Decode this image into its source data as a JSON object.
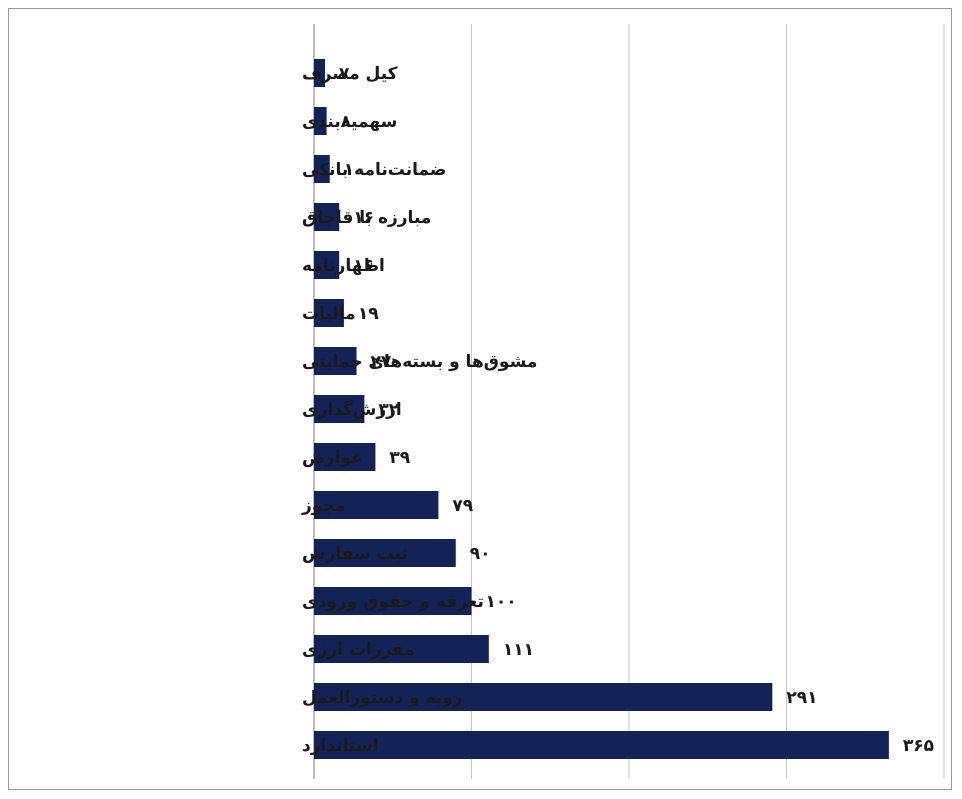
{
  "chart_data": {
    "type": "bar",
    "orientation": "horizontal",
    "title": "",
    "xlabel": "",
    "ylabel": "",
    "xlim": [
      0,
      400
    ],
    "grid": true,
    "bar_color": "#132357",
    "categories": [
      "کیل مصرف",
      "سهمیه‌بندی",
      "ضمانت‌نامه بانکی",
      "مبارزه با قاچاق",
      "اظهارنامه",
      "مالیات",
      "مشوق‌ها و بسته‌های حمایتی",
      "ارزش‌گذاری",
      "عوارض",
      "مجوز",
      "ثبت سفارش",
      "تعرفه و حقوق ورودی",
      "مقررات ارزی",
      "رویه و دستورالعمل",
      "استاندارد"
    ],
    "values": [
      7,
      8,
      10,
      16,
      16,
      19,
      27,
      32,
      39,
      79,
      90,
      100,
      111,
      291,
      365
    ],
    "value_labels": [
      "۷",
      "۸",
      "۱۰",
      "۱۶",
      "۱۶",
      "۱۹",
      "۲۷",
      "۳۲",
      "۳۹",
      "۷۹",
      "۹۰",
      "۱۰۰",
      "۱۱۱",
      "۲۹۱",
      "۳۶۵"
    ]
  }
}
